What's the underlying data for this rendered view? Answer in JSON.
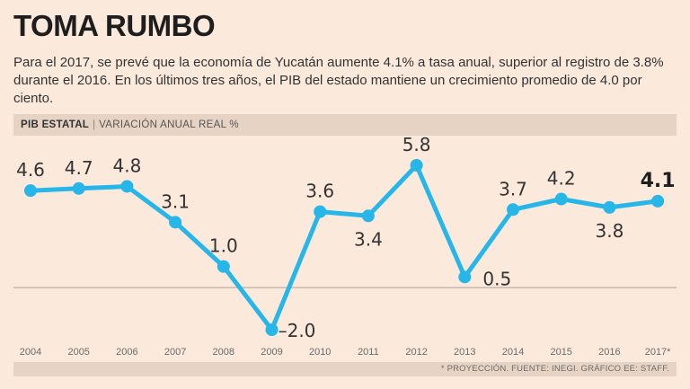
{
  "header": {
    "title": "TOMA RUMBO",
    "subtitle": "Para el 2017, se prevé que la economía de Yucatán aumente 4.1% a tasa anual, superior al registro de 3.8% durante el 2016. En los últimos tres años, el PIB del estado mantiene un crecimiento promedio de 4.0 por ciento."
  },
  "label_bar": {
    "main": "PIB ESTATAL",
    "separator": "|",
    "sub": "VARIACIÓN ANUAL REAL %"
  },
  "footnote": "* PROYECCIÓN. FUENTE: INEGI. GRÁFICO EE: STAFF.",
  "colors": {
    "line": "#27b6e8",
    "background": "#fbe9dc",
    "bar": "#e6d3c4",
    "baseline": "#a9a29c"
  },
  "chart_data": {
    "type": "line",
    "title": "PIB ESTATAL",
    "ylabel": "VARIACIÓN ANUAL REAL %",
    "xlabel": "",
    "categories": [
      "2004",
      "2005",
      "2006",
      "2007",
      "2008",
      "2009",
      "2010",
      "2011",
      "2012",
      "2013",
      "2014",
      "2015",
      "2016",
      "2017*"
    ],
    "series": [
      {
        "name": "PIB Estatal",
        "values": [
          4.6,
          4.7,
          4.8,
          3.1,
          1.0,
          -2.0,
          3.6,
          3.4,
          5.8,
          0.5,
          3.7,
          4.2,
          3.8,
          4.1
        ],
        "labels": [
          "4.6",
          "4.7",
          "4.8",
          "3.1",
          "1.0",
          "–2.0",
          "3.6",
          "3.4",
          "5.8",
          "0.5",
          "3.7",
          "4.2",
          "3.8",
          "4.1"
        ]
      }
    ],
    "highlight_index": 13,
    "baseline_value": 0,
    "ylim": [
      -2.0,
      5.8
    ],
    "grid": false
  }
}
